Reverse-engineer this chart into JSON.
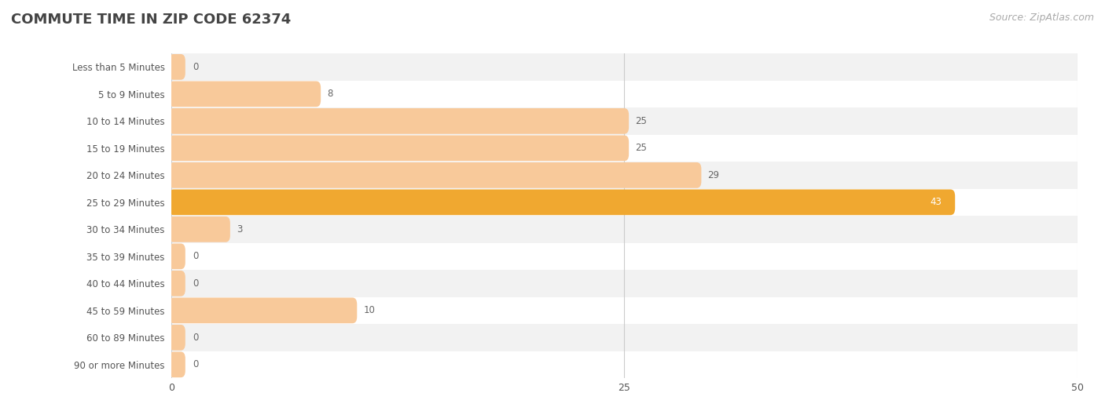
{
  "title": "COMMUTE TIME IN ZIP CODE 62374",
  "source": "Source: ZipAtlas.com",
  "categories": [
    "Less than 5 Minutes",
    "5 to 9 Minutes",
    "10 to 14 Minutes",
    "15 to 19 Minutes",
    "20 to 24 Minutes",
    "25 to 29 Minutes",
    "30 to 34 Minutes",
    "35 to 39 Minutes",
    "40 to 44 Minutes",
    "45 to 59 Minutes",
    "60 to 89 Minutes",
    "90 or more Minutes"
  ],
  "values": [
    0,
    8,
    25,
    25,
    29,
    43,
    3,
    0,
    0,
    10,
    0,
    0
  ],
  "bar_color_normal": "#f8c99a",
  "bar_color_highlight": "#f0a830",
  "highlight_index": 5,
  "row_bg_odd": "#f2f2f2",
  "row_bg_even": "#ffffff",
  "xlim": [
    0,
    50
  ],
  "xticks": [
    0,
    25,
    50
  ],
  "title_color": "#444444",
  "source_color": "#aaaaaa",
  "label_color": "#555555",
  "value_color_inside": "#ffffff",
  "value_color_outside": "#666666",
  "title_fontsize": 13,
  "source_fontsize": 9,
  "label_fontsize": 8.5,
  "value_fontsize": 8.5,
  "tick_fontsize": 9,
  "grid_color": "#cccccc",
  "bar_height": 0.6,
  "min_bar_display": 0.4
}
